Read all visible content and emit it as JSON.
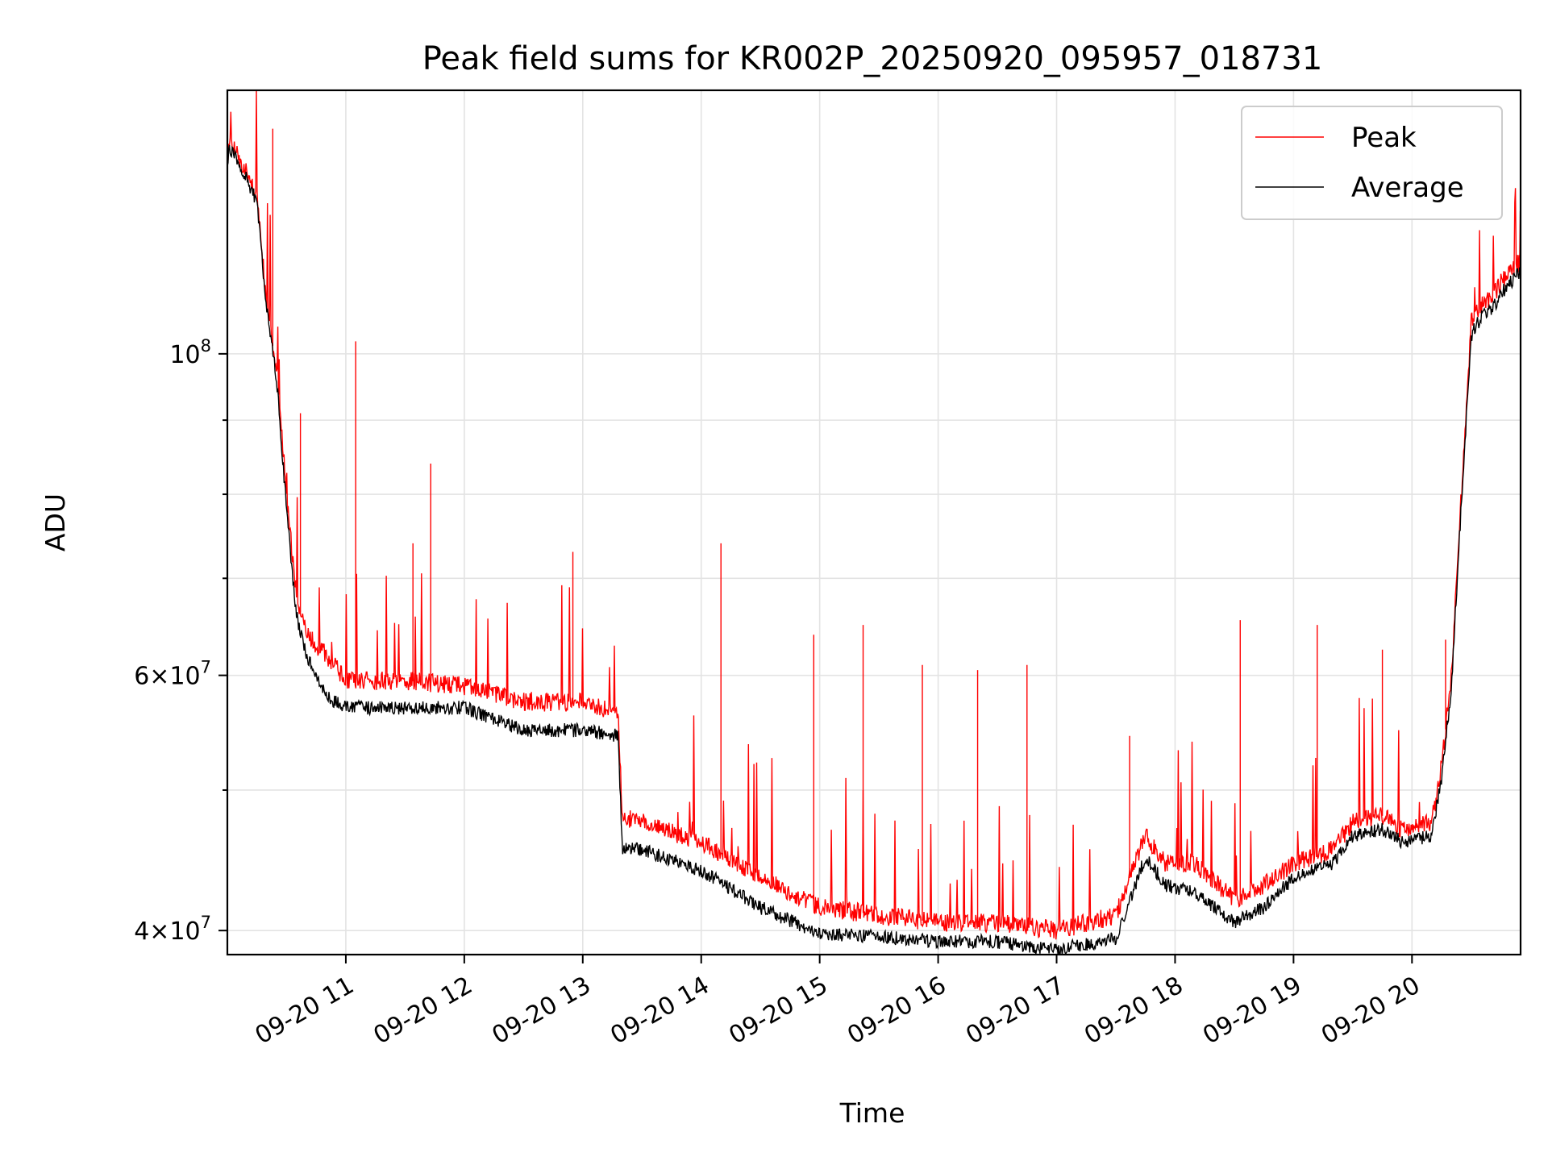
{
  "chart_data": {
    "type": "line",
    "title": "Peak field sums for KR002P_20250920_095957_018731",
    "xlabel": "Time",
    "ylabel": "ADU",
    "yscale": "log",
    "xlim": [
      "09-20 10:00",
      "09-20 20:55"
    ],
    "ylim": [
      38500000,
      152000000
    ],
    "grid": true,
    "legend_position": "top-right",
    "x_ticks": [
      "09-20 11",
      "09-20 12",
      "09-20 13",
      "09-20 14",
      "09-20 15",
      "09-20 16",
      "09-20 17",
      "09-20 18",
      "09-20 19",
      "09-20 20"
    ],
    "y_ticks": [
      {
        "value": 40000000,
        "mantissa": "4",
        "exponent": "7"
      },
      {
        "value": 60000000,
        "mantissa": "6",
        "exponent": "7"
      },
      {
        "value": 100000000,
        "mantissa": "",
        "exponent": "8"
      }
    ],
    "y_minor_ticks": [
      50000000,
      70000000,
      80000000,
      90000000
    ],
    "series": [
      {
        "name": "Peak",
        "color": "#ff0000",
        "x": [
          "10:00",
          "10:01",
          "10:05",
          "10:10",
          "10:15",
          "10:20",
          "10:25",
          "10:30",
          "10:35",
          "10:40",
          "10:50",
          "11:00",
          "11:30",
          "12:00",
          "12:30",
          "13:00",
          "13:18",
          "13:20",
          "13:30",
          "14:00",
          "14:30",
          "15:00",
          "15:30",
          "16:00",
          "16:30",
          "17:00",
          "17:30",
          "17:45",
          "17:55",
          "18:10",
          "18:30",
          "18:45",
          "19:00",
          "19:20",
          "19:30",
          "19:45",
          "19:55",
          "20:10",
          "20:15",
          "20:20",
          "20:25",
          "20:30",
          "20:35",
          "20:40",
          "20:45",
          "20:50",
          "20:55"
        ],
        "y": [
          137000000,
          140000000,
          137000000,
          133000000,
          128000000,
          108000000,
          97000000,
          80000000,
          68000000,
          64000000,
          62000000,
          59500000,
          59500000,
          59000000,
          57500000,
          57500000,
          56500000,
          48000000,
          47500000,
          46000000,
          43500000,
          41500000,
          41000000,
          40500000,
          40500000,
          40000000,
          41000000,
          46500000,
          44500000,
          44500000,
          42000000,
          43000000,
          44500000,
          45500000,
          47500000,
          48000000,
          47000000,
          47500000,
          52000000,
          60000000,
          80000000,
          105000000,
          108000000,
          109000000,
          112000000,
          114000000,
          116000000
        ],
        "spikes": [
          {
            "x": "10:23",
            "y": 143000000
          },
          {
            "x": "10:37",
            "y": 91000000
          },
          {
            "x": "11:05",
            "y": 102000000
          },
          {
            "x": "11:43",
            "y": 84000000
          },
          {
            "x": "11:34",
            "y": 74000000
          },
          {
            "x": "12:55",
            "y": 73000000
          },
          {
            "x": "14:10",
            "y": 74000000
          },
          {
            "x": "14:57",
            "y": 64000000
          },
          {
            "x": "15:22",
            "y": 65000000
          },
          {
            "x": "15:52",
            "y": 61000000
          },
          {
            "x": "16:20",
            "y": 60500000
          },
          {
            "x": "16:45",
            "y": 61000000
          },
          {
            "x": "17:37",
            "y": 54500000
          },
          {
            "x": "18:33",
            "y": 65500000
          },
          {
            "x": "19:12",
            "y": 65000000
          },
          {
            "x": "19:45",
            "y": 62500000
          },
          {
            "x": "20:17",
            "y": 63500000
          }
        ]
      },
      {
        "name": "Average",
        "color": "#000000",
        "x": [
          "10:00",
          "10:01",
          "10:05",
          "10:10",
          "10:15",
          "10:20",
          "10:25",
          "10:30",
          "10:35",
          "10:40",
          "10:50",
          "11:00",
          "11:30",
          "12:00",
          "12:30",
          "13:00",
          "13:18",
          "13:20",
          "13:30",
          "14:00",
          "14:30",
          "15:00",
          "15:30",
          "16:00",
          "16:30",
          "17:00",
          "17:30",
          "17:45",
          "17:55",
          "18:10",
          "18:30",
          "18:45",
          "19:00",
          "19:20",
          "19:30",
          "19:45",
          "19:55",
          "20:10",
          "20:15",
          "20:20",
          "20:25",
          "20:30",
          "20:35",
          "20:40",
          "20:45",
          "20:50",
          "20:55"
        ],
        "y": [
          136000000,
          138500000,
          136000000,
          132000000,
          127000000,
          107000000,
          96000000,
          78000000,
          66000000,
          62000000,
          58000000,
          57000000,
          57000000,
          57000000,
          55000000,
          55000000,
          54500000,
          45500000,
          45500000,
          44000000,
          41500000,
          39800000,
          39600000,
          39300000,
          39300000,
          38800000,
          39500000,
          45000000,
          43000000,
          42500000,
          40500000,
          41500000,
          43500000,
          44500000,
          46500000,
          47000000,
          46000000,
          46500000,
          51000000,
          59000000,
          79000000,
          103000000,
          106000000,
          107000000,
          110000000,
          112000000,
          114000000
        ]
      }
    ]
  }
}
